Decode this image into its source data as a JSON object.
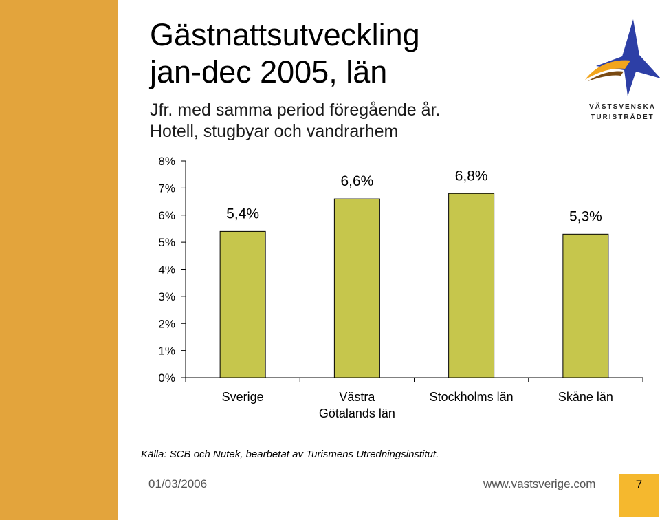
{
  "slide": {
    "title_line1": "Gästnattsutveckling",
    "title_line2": "jan-dec 2005, län",
    "subtitle_line1": "Jfr. med samma period föregående år.",
    "subtitle_line2": "Hotell, stugbyar och vandrarhem",
    "logo_line1": "VÄSTSVENSKA",
    "logo_line2": "TURISTRÅDET",
    "source": "Källa: SCB och Nutek, bearbetat av Turismens Utredningsinstitut.",
    "date": "01/03/2006",
    "url": "www.vastsverige.com",
    "page_number": "7"
  },
  "colors": {
    "side_bar": "#e3a43c",
    "bar_fill": "#c6c64c",
    "page_box": "#f5b82e",
    "logo_star": "#2d3fa6",
    "logo_swoosh": "#f2a51d"
  },
  "chart_data": {
    "type": "bar",
    "categories": [
      [
        "Sverige"
      ],
      [
        "Västra",
        "Götalands län"
      ],
      [
        "Stockholms län"
      ],
      [
        "Skåne län"
      ]
    ],
    "values": [
      5.4,
      6.6,
      6.8,
      5.3
    ],
    "data_labels": [
      "5,4%",
      "6,6%",
      "6,8%",
      "5,3%"
    ],
    "y_ticks": [
      "0%",
      "1%",
      "2%",
      "3%",
      "4%",
      "5%",
      "6%",
      "7%",
      "8%"
    ],
    "ylim": [
      0,
      8
    ],
    "grid": false,
    "legend": "none"
  }
}
